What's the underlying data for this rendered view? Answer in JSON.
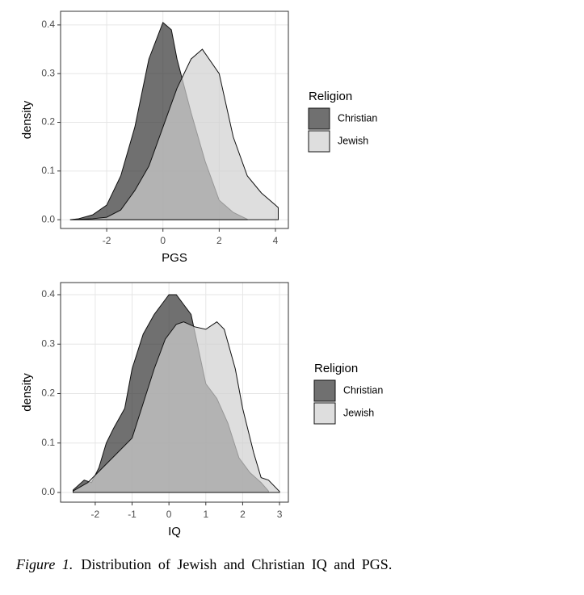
{
  "chart_data": [
    {
      "type": "area",
      "x_label": "PGS",
      "y_label": "density",
      "legend_title": "Religion",
      "xlim": [
        -3.64,
        4.46
      ],
      "ylim": [
        -0.018,
        0.428
      ],
      "xticks": [
        -2,
        0,
        2,
        4
      ],
      "yticks": [
        {
          "value": 0,
          "label": "0.0"
        },
        0.1,
        0.2,
        0.3,
        0.4
      ],
      "grid": true,
      "opacity": 0.7,
      "series": [
        {
          "name": "Christian",
          "color": "#333333",
          "x": [
            -3.3,
            -3,
            -2.5,
            -2,
            -1.5,
            -1,
            -0.5,
            0,
            0.3,
            0.5,
            1,
            1.5,
            2,
            2.5,
            3
          ],
          "values": [
            0,
            0.002,
            0.01,
            0.03,
            0.09,
            0.19,
            0.33,
            0.405,
            0.39,
            0.33,
            0.22,
            0.12,
            0.04,
            0.015,
            0.001
          ]
        },
        {
          "name": "Jewish",
          "color": "#d0d0d0",
          "x": [
            -3.3,
            -2.5,
            -2,
            -1.5,
            -1,
            -0.5,
            0,
            0.5,
            1,
            1.4,
            2,
            2.5,
            3,
            3.5,
            4,
            4.1
          ],
          "values": [
            0,
            0.002,
            0.005,
            0.02,
            0.06,
            0.11,
            0.19,
            0.27,
            0.33,
            0.35,
            0.3,
            0.17,
            0.09,
            0.055,
            0.03,
            0.025
          ]
        }
      ]
    },
    {
      "type": "area",
      "x_label": "IQ",
      "y_label": "density",
      "legend_title": "Religion",
      "xlim": [
        -2.94,
        3.24
      ],
      "ylim": [
        -0.0196,
        0.4245
      ],
      "xticks": [
        -2,
        -1,
        0,
        1,
        2,
        3
      ],
      "yticks": [
        {
          "value": 0,
          "label": "0.0"
        },
        0.1,
        0.2,
        0.3,
        0.4
      ],
      "grid": true,
      "opacity": 0.7,
      "series": [
        {
          "name": "Christian",
          "color": "#333333",
          "x": [
            -2.6,
            -2.3,
            -2.1,
            -1.9,
            -1.7,
            -1.5,
            -1.2,
            -1,
            -0.7,
            -0.4,
            -0.2,
            0,
            0.2,
            0.4,
            0.6,
            0.8,
            1,
            1.3,
            1.6,
            1.9,
            2.2,
            2.5,
            2.7
          ],
          "values": [
            0.005,
            0.025,
            0.02,
            0.05,
            0.1,
            0.13,
            0.17,
            0.25,
            0.32,
            0.36,
            0.38,
            0.4,
            0.4,
            0.38,
            0.36,
            0.29,
            0.22,
            0.19,
            0.14,
            0.07,
            0.04,
            0.02,
            0.003
          ]
        },
        {
          "name": "Jewish",
          "color": "#d0d0d0",
          "x": [
            -2.6,
            -2.2,
            -1.8,
            -1.4,
            -1,
            -0.7,
            -0.4,
            -0.1,
            0.2,
            0.4,
            0.7,
            1,
            1.3,
            1.5,
            1.8,
            2,
            2.3,
            2.5,
            2.7,
            3
          ],
          "values": [
            0.003,
            0.02,
            0.05,
            0.08,
            0.11,
            0.18,
            0.25,
            0.31,
            0.34,
            0.345,
            0.335,
            0.33,
            0.345,
            0.33,
            0.25,
            0.17,
            0.08,
            0.03,
            0.025,
            0.002
          ]
        }
      ]
    }
  ],
  "caption": {
    "label": "Figure 1.",
    "text": "Distribution of Jewish and Christian IQ and PGS."
  }
}
